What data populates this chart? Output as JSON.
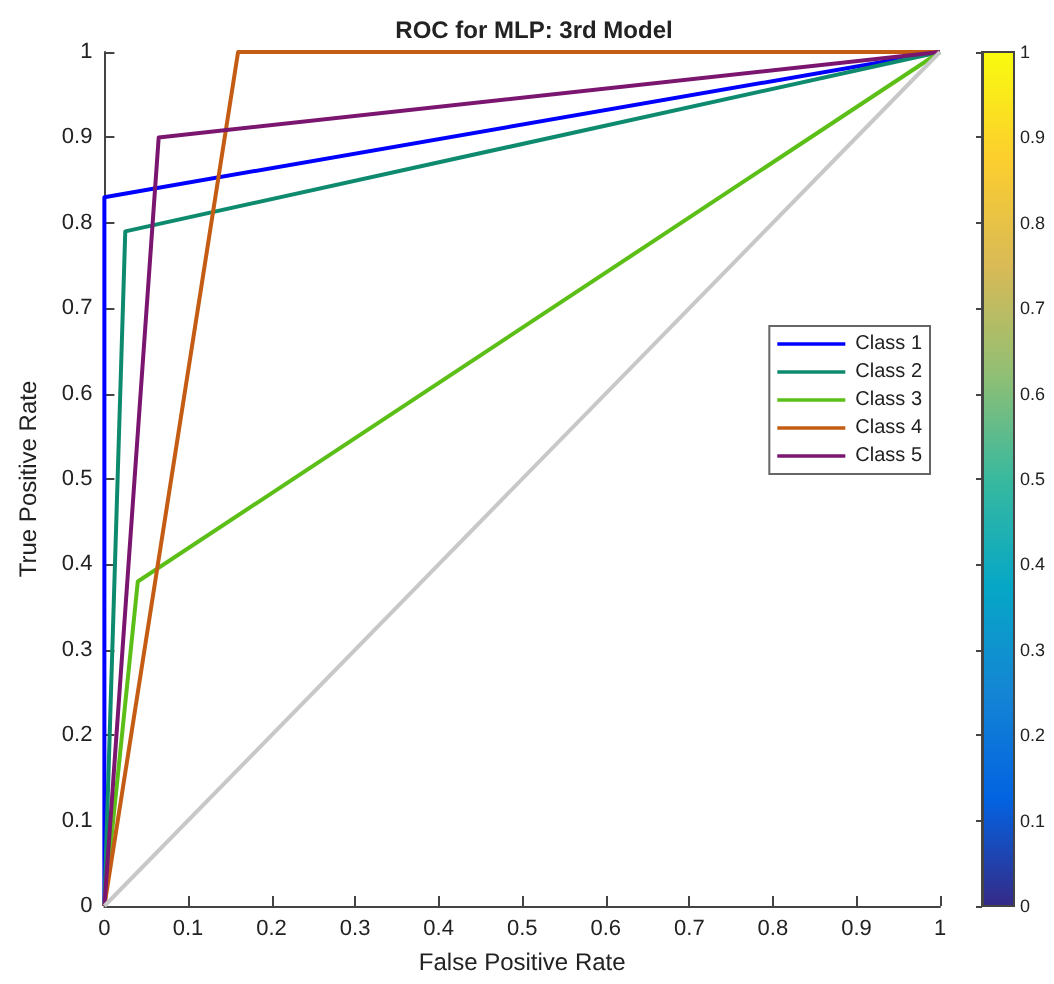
{
  "chart_data": {
    "type": "line",
    "title": "ROC for MLP: 3rd Model",
    "xlabel": "False Positive Rate",
    "ylabel": "True Positive Rate",
    "xlim": [
      0,
      1
    ],
    "ylim": [
      0,
      1
    ],
    "xticks": [
      0,
      0.1,
      0.2,
      0.3,
      0.4,
      0.5,
      0.6,
      0.7,
      0.8,
      0.9,
      1
    ],
    "yticks": [
      0,
      0.1,
      0.2,
      0.3,
      0.4,
      0.5,
      0.6,
      0.7,
      0.8,
      0.9,
      1
    ],
    "series": [
      {
        "name": "Class 1",
        "color": "#0000ff",
        "x": [
          0,
          0,
          1
        ],
        "values": [
          0,
          0.83,
          1
        ]
      },
      {
        "name": "Class 2",
        "color": "#0e8a6e",
        "x": [
          0,
          0.025,
          1
        ],
        "values": [
          0,
          0.79,
          1
        ]
      },
      {
        "name": "Class 3",
        "color": "#5cbf17",
        "x": [
          0,
          0.04,
          1
        ],
        "values": [
          0,
          0.38,
          1
        ]
      },
      {
        "name": "Class 4",
        "color": "#c45c14",
        "x": [
          0,
          0.16,
          1
        ],
        "values": [
          0,
          1,
          1
        ]
      },
      {
        "color": "#7a1570",
        "x": [
          0,
          0.065,
          1
        ],
        "values": [
          0,
          0.9,
          1
        ],
        "name": "Class 5"
      },
      {
        "color": "#c8c8c8",
        "x": [
          0,
          1
        ],
        "values": [
          0,
          1
        ]
      }
    ],
    "legend": "right",
    "grid": false,
    "marker": "none",
    "line_style": "solid",
    "clim": [
      0,
      1
    ],
    "cticks": [
      0,
      0.1,
      0.2,
      0.3,
      0.4,
      0.5,
      0.6,
      0.7,
      0.8,
      0.9,
      1
    ]
  }
}
